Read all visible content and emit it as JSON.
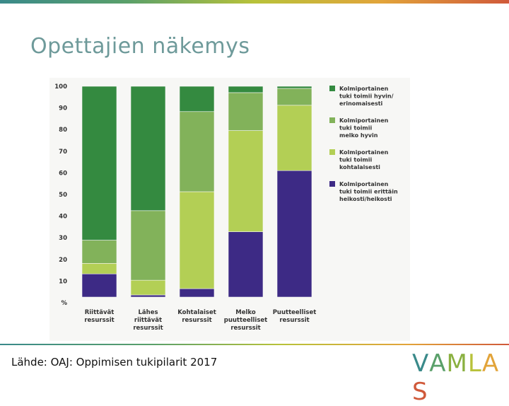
{
  "title": "Opettajien näkemys",
  "source": "Lähde: OAJ: Oppimisen tukipilarit 2017",
  "logo": {
    "text": "VAMLAS",
    "letters": [
      {
        "ch": "V",
        "color": "#3a8a8a"
      },
      {
        "ch": "A",
        "color": "#5aa06a"
      },
      {
        "ch": "M",
        "color": "#8ab040"
      },
      {
        "ch": "L",
        "color": "#b8c23a"
      },
      {
        "ch": "A",
        "color": "#e2a43a"
      },
      {
        "ch": "S",
        "color": "#d0593a"
      }
    ]
  },
  "chart_data": {
    "type": "bar",
    "stacked": true,
    "categories": [
      [
        "Riittävät",
        "resurssit"
      ],
      [
        "Lähes",
        "riittävät",
        "resurssit"
      ],
      [
        "Kohtalaiset",
        "resurssit"
      ],
      [
        "Melko",
        "puutteelliset",
        "resurssit"
      ],
      [
        "Puutteelliset",
        "resurssit"
      ]
    ],
    "series": [
      {
        "name": [
          "Kolmiportainen",
          "tuki toimii erittäin",
          "heikosti/heikosti"
        ],
        "color": "#3d2a85",
        "values": [
          11,
          1,
          4,
          31,
          60
        ]
      },
      {
        "name": [
          "Kolmiportainen",
          "tuki toimii",
          "kohtalaisesti"
        ],
        "color": "#b3cf55",
        "values": [
          5,
          7,
          46,
          48,
          31
        ]
      },
      {
        "name": [
          "Kolmiportainen",
          "tuki toimii",
          "melko hyvin"
        ],
        "color": "#82b25a",
        "values": [
          11,
          33,
          38,
          18,
          8
        ]
      },
      {
        "name": [
          "Kolmiportainen",
          "tuki toimii hyvin/",
          "erinomaisesti"
        ],
        "color": "#348a40",
        "values": [
          73,
          59,
          12,
          3,
          1
        ]
      }
    ],
    "legend_order": [
      3,
      2,
      1,
      0
    ],
    "ylim": [
      0,
      100
    ],
    "yticks": [
      "100",
      "90",
      "80",
      "70",
      "60",
      "50",
      "40",
      "30",
      "20",
      "10",
      "%"
    ],
    "legend_position": "right",
    "grid": false
  }
}
